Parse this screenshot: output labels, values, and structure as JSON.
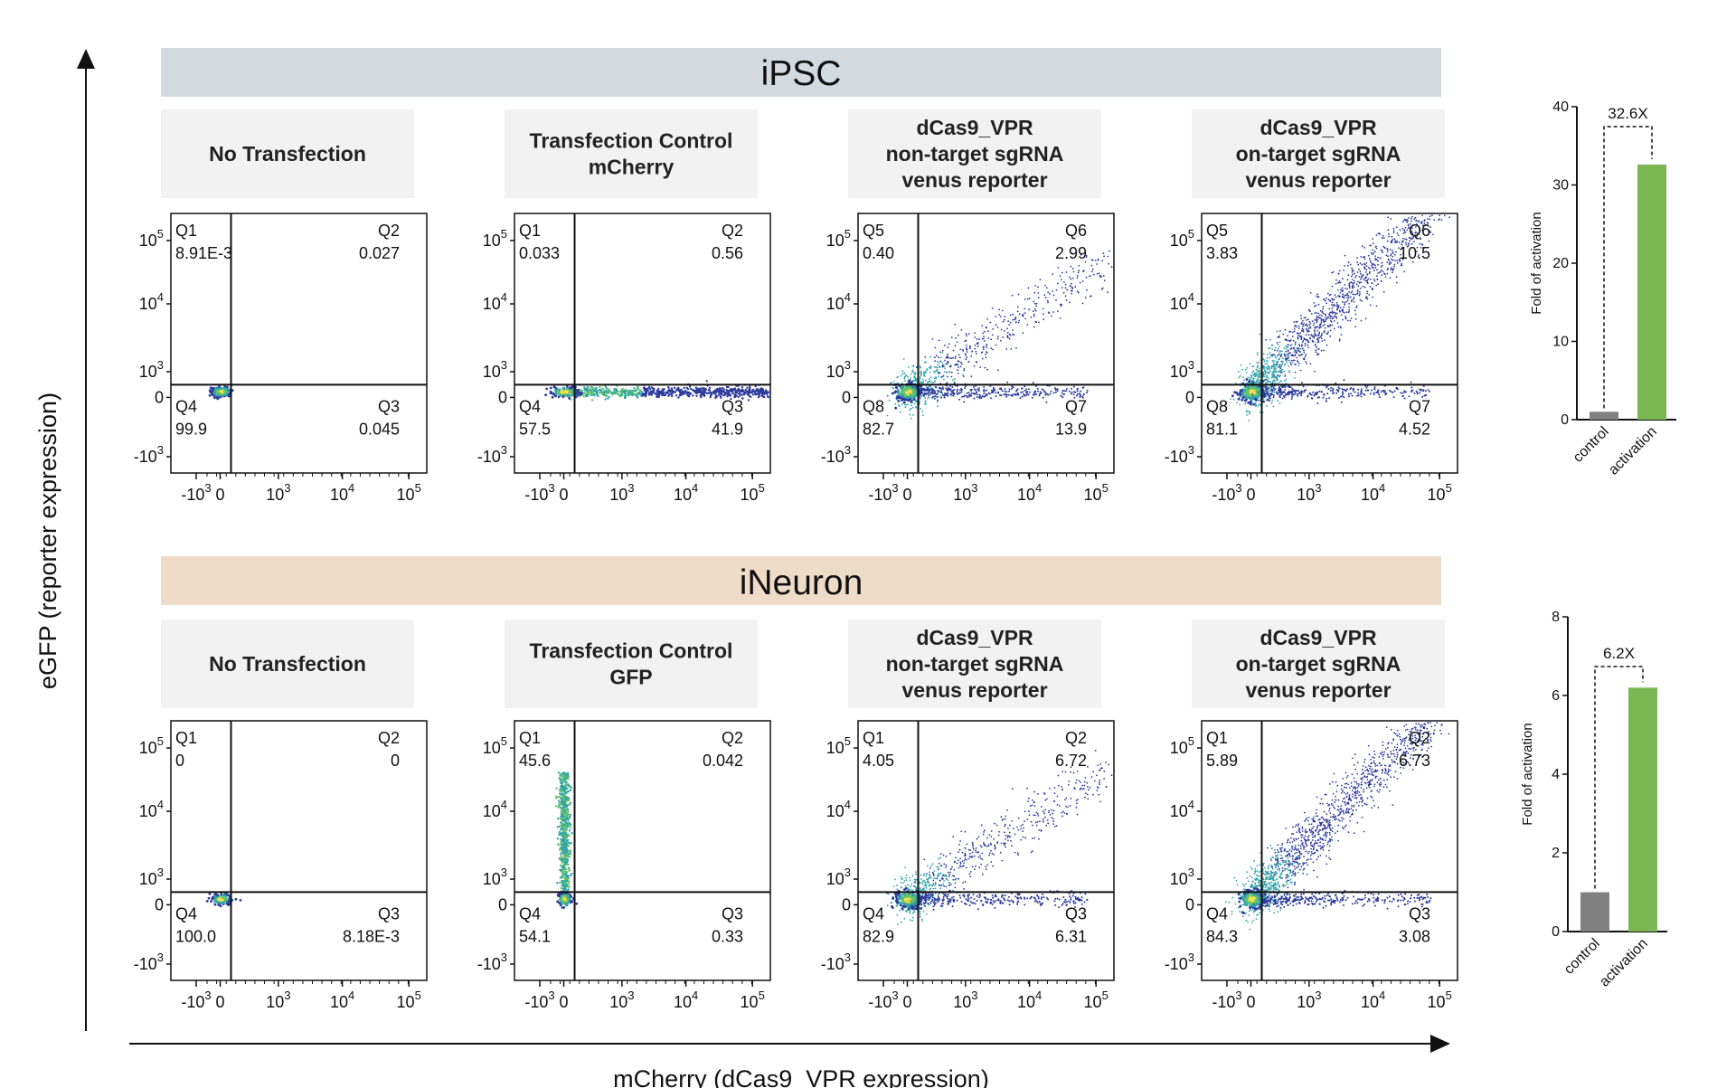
{
  "figure": {
    "y_axis_title": "eGFP (reporter expression)",
    "x_axis_title": "mCherry (dCas9_VPR expression)",
    "x_tick_labels": [
      "-10^3",
      "0",
      "10^3",
      "10^4",
      "10^5"
    ],
    "y_tick_labels": [
      "10^5",
      "10^4",
      "10^3",
      "0",
      "-10^3"
    ]
  },
  "chart_data": [
    {
      "type": "scatter",
      "group": "iPSC",
      "panels": [
        {
          "title_lines": [
            "No Transfection"
          ],
          "quadrants": {
            "tl": [
              "Q1",
              "8.91E-3"
            ],
            "tr": [
              "Q2",
              "0.027"
            ],
            "bl": [
              "Q4",
              "99.9"
            ],
            "br": [
              "Q3",
              "0.045"
            ]
          }
        },
        {
          "title_lines": [
            "Transfection Control",
            "mCherry"
          ],
          "quadrants": {
            "tl": [
              "Q1",
              "0.033"
            ],
            "tr": [
              "Q2",
              "0.56"
            ],
            "bl": [
              "Q4",
              "57.5"
            ],
            "br": [
              "Q3",
              "41.9"
            ]
          }
        },
        {
          "title_lines": [
            "dCas9_VPR",
            "non-target sgRNA",
            "venus reporter"
          ],
          "quadrants": {
            "tl": [
              "Q5",
              "0.40"
            ],
            "tr": [
              "Q6",
              "2.99"
            ],
            "bl": [
              "Q8",
              "82.7"
            ],
            "br": [
              "Q7",
              "13.9"
            ]
          }
        },
        {
          "title_lines": [
            "dCas9_VPR",
            "on-target sgRNA",
            "venus reporter"
          ],
          "quadrants": {
            "tl": [
              "Q5",
              "3.83"
            ],
            "tr": [
              "Q6",
              "10.5"
            ],
            "bl": [
              "Q8",
              "81.1"
            ],
            "br": [
              "Q7",
              "4.52"
            ]
          }
        }
      ]
    },
    {
      "type": "scatter",
      "group": "iNeuron",
      "panels": [
        {
          "title_lines": [
            "No Transfection"
          ],
          "quadrants": {
            "tl": [
              "Q1",
              "0"
            ],
            "tr": [
              "Q2",
              "0"
            ],
            "bl": [
              "Q4",
              "100.0"
            ],
            "br": [
              "Q3",
              "8.18E-3"
            ]
          }
        },
        {
          "title_lines": [
            "Transfection Control",
            "GFP"
          ],
          "quadrants": {
            "tl": [
              "Q1",
              "45.6"
            ],
            "tr": [
              "Q2",
              "0.042"
            ],
            "bl": [
              "Q4",
              "54.1"
            ],
            "br": [
              "Q3",
              "0.33"
            ]
          }
        },
        {
          "title_lines": [
            "dCas9_VPR",
            "non-target sgRNA",
            "venus reporter"
          ],
          "quadrants": {
            "tl": [
              "Q1",
              "4.05"
            ],
            "tr": [
              "Q2",
              "6.72"
            ],
            "bl": [
              "Q4",
              "82.9"
            ],
            "br": [
              "Q3",
              "6.31"
            ]
          }
        },
        {
          "title_lines": [
            "dCas9_VPR",
            "on-target sgRNA",
            "venus reporter"
          ],
          "quadrants": {
            "tl": [
              "Q1",
              "5.89"
            ],
            "tr": [
              "Q2",
              "6.73"
            ],
            "bl": [
              "Q4",
              "84.3"
            ],
            "br": [
              "Q3",
              "3.08"
            ]
          }
        }
      ]
    },
    {
      "type": "bar",
      "group": "iPSC",
      "categories": [
        "control",
        "activation"
      ],
      "values": [
        1,
        32.6
      ],
      "colors": [
        "#808080",
        "#79b752"
      ],
      "ylabel": "Fold of activation",
      "ylim": [
        0,
        40
      ],
      "yticks": [
        0,
        10,
        20,
        30,
        40
      ],
      "annotation": "32.6X"
    },
    {
      "type": "bar",
      "group": "iNeuron",
      "categories": [
        "control",
        "activation"
      ],
      "values": [
        1,
        6.2
      ],
      "colors": [
        "#808080",
        "#79b752"
      ],
      "ylabel": "Fold of activation",
      "ylim": [
        0,
        8
      ],
      "yticks": [
        0,
        2,
        4,
        6,
        8
      ],
      "annotation": "6.2X"
    }
  ],
  "colors": {
    "ipsc_banner": "#d3dae0",
    "ineuron_banner": "#efdcc8",
    "label_box": "#f2f2f2",
    "control_bar": "#808080",
    "activation_bar": "#79b752",
    "density_low": "#2d3a9b",
    "density_high": "#f2e14a"
  }
}
